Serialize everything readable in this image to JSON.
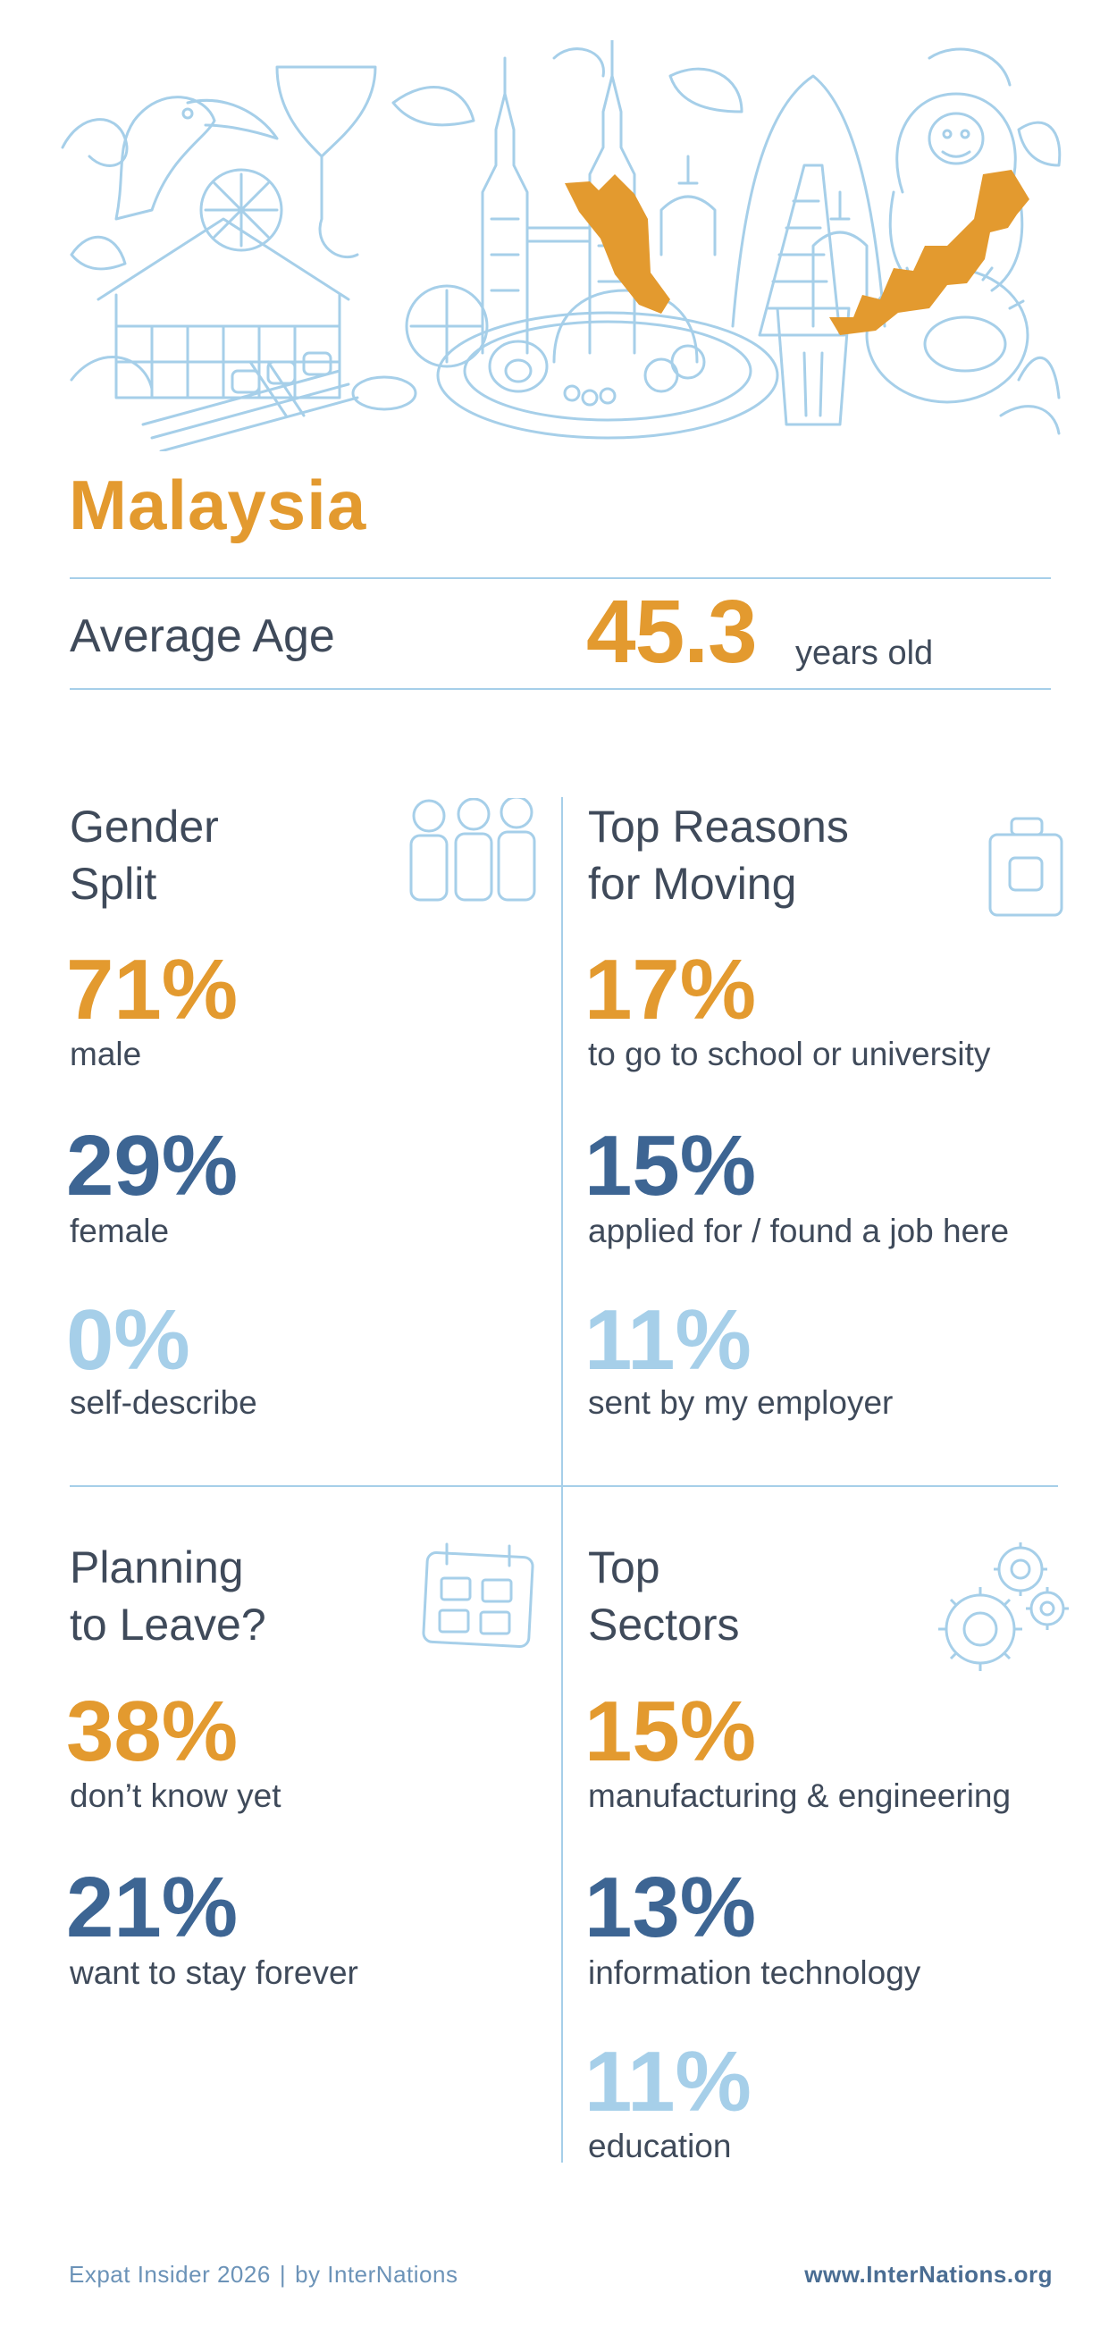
{
  "country": "Malaysia",
  "average_age": {
    "label": "Average Age",
    "value": "45.3",
    "unit": "years old"
  },
  "gender_split": {
    "title_line1": "Gender",
    "title_line2": "Split",
    "icon": "people-icon",
    "items": [
      {
        "pct": "71%",
        "label": "male",
        "color": "#e39a2f"
      },
      {
        "pct": "29%",
        "label": "female",
        "color": "#3d6593"
      },
      {
        "pct": "0%",
        "label": "self-describe",
        "color": "#a6cfe9"
      }
    ]
  },
  "top_reasons": {
    "title_line1": "Top Reasons",
    "title_line2": "for Moving",
    "icon": "suitcase-icon",
    "items": [
      {
        "pct": "17%",
        "label": "to go to school or university",
        "color": "#e39a2f"
      },
      {
        "pct": "15%",
        "label": "applied for / found a job here",
        "color": "#3d6593"
      },
      {
        "pct": "11%",
        "label": "sent by my employer",
        "color": "#a6cfe9"
      }
    ]
  },
  "planning_to_leave": {
    "title_line1": "Planning",
    "title_line2": "to Leave?",
    "icon": "calendar-icon",
    "items": [
      {
        "pct": "38%",
        "label": "don’t know yet",
        "color": "#e39a2f"
      },
      {
        "pct": "21%",
        "label": "want to stay forever",
        "color": "#3d6593"
      }
    ]
  },
  "top_sectors": {
    "title_line1": "Top",
    "title_line2": "Sectors",
    "icon": "gears-icon",
    "items": [
      {
        "pct": "15%",
        "label": "manufacturing & engineering",
        "color": "#e39a2f"
      },
      {
        "pct": "13%",
        "label": "information technology",
        "color": "#3d6593"
      },
      {
        "pct": "11%",
        "label": "education",
        "color": "#a6cfe9"
      }
    ]
  },
  "footer": {
    "source": "Expat Insider 2026",
    "separator": "|",
    "by": "by InterNations",
    "url": "www.InterNations.org"
  }
}
